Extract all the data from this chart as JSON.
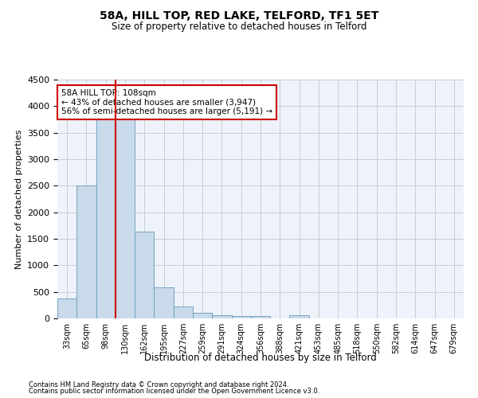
{
  "title": "58A, HILL TOP, RED LAKE, TELFORD, TF1 5ET",
  "subtitle": "Size of property relative to detached houses in Telford",
  "xlabel": "Distribution of detached houses by size in Telford",
  "ylabel": "Number of detached properties",
  "bar_color": "#c9daea",
  "bar_edge_color": "#6699bb",
  "bar_values": [
    370,
    2500,
    3750,
    3750,
    1640,
    590,
    225,
    105,
    60,
    45,
    40,
    0,
    60,
    0,
    0,
    0,
    0,
    0,
    0,
    0,
    0
  ],
  "bin_labels": [
    "33sqm",
    "65sqm",
    "98sqm",
    "130sqm",
    "162sqm",
    "195sqm",
    "227sqm",
    "259sqm",
    "291sqm",
    "324sqm",
    "356sqm",
    "388sqm",
    "421sqm",
    "453sqm",
    "485sqm",
    "518sqm",
    "550sqm",
    "582sqm",
    "614sqm",
    "647sqm",
    "679sqm"
  ],
  "ylim": [
    0,
    4500
  ],
  "yticks": [
    0,
    500,
    1000,
    1500,
    2000,
    2500,
    3000,
    3500,
    4000,
    4500
  ],
  "vline_x": 2.5,
  "vline_color": "#cc0000",
  "annotation_line1": "58A HILL TOP: 108sqm",
  "annotation_line2": "← 43% of detached houses are smaller (3,947)",
  "annotation_line3": "56% of semi-detached houses are larger (5,191) →",
  "annotation_box_color": "#cc0000",
  "footer_line1": "Contains HM Land Registry data © Crown copyright and database right 2024.",
  "footer_line2": "Contains public sector information licensed under the Open Government Licence v3.0.",
  "grid_color": "#cccccc",
  "bg_color": "#eef2fa"
}
